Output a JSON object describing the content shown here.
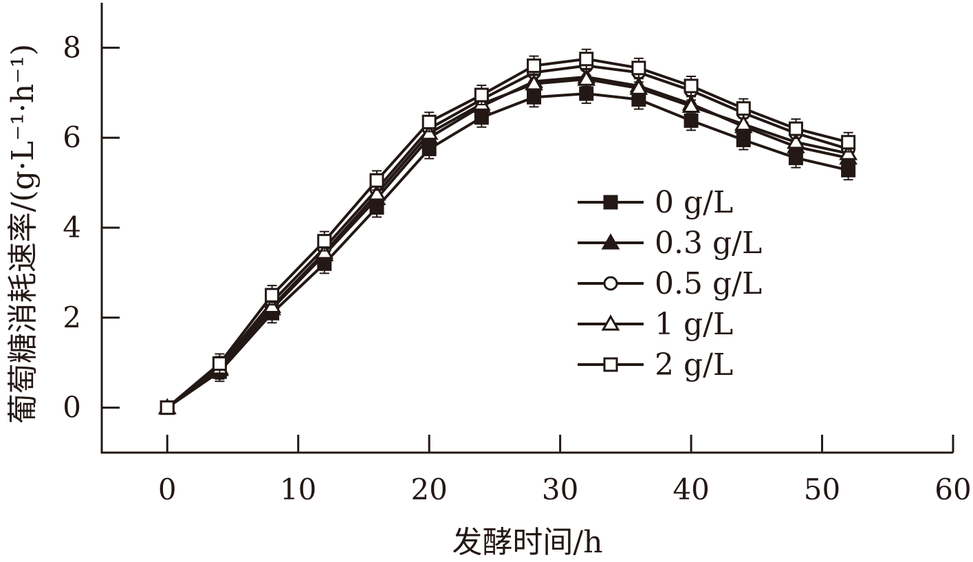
{
  "chart_data": {
    "type": "line",
    "xlabel": "发酵时间/h",
    "ylabel": "葡萄糖消耗速率/(g·L⁻¹·h⁻¹)",
    "xlim": [
      -5,
      60
    ],
    "ylim": [
      -1,
      9
    ],
    "x_ticks": [
      0,
      10,
      20,
      30,
      40,
      50,
      60
    ],
    "y_ticks": [
      0,
      2,
      4,
      6,
      8
    ],
    "grid": false,
    "legend_position": "center-right",
    "x": [
      0,
      4,
      8,
      12,
      16,
      20,
      24,
      28,
      32,
      36,
      40,
      44,
      48,
      52
    ],
    "series": [
      {
        "name": "0 g/L",
        "marker": "filled-square",
        "values": [
          0,
          0.8,
          2.1,
          3.2,
          4.45,
          5.75,
          6.45,
          6.9,
          6.98,
          6.85,
          6.38,
          5.95,
          5.55,
          5.28
        ]
      },
      {
        "name": "0.3 g/L",
        "marker": "filled-triangle",
        "values": [
          0,
          0.85,
          2.2,
          3.4,
          4.65,
          6.0,
          6.7,
          7.25,
          7.35,
          7.15,
          6.75,
          6.25,
          5.8,
          5.55
        ]
      },
      {
        "name": "0.5 g/L",
        "marker": "open-circle",
        "values": [
          0,
          0.92,
          2.35,
          3.55,
          4.85,
          6.2,
          6.85,
          7.45,
          7.6,
          7.45,
          7.05,
          6.55,
          6.1,
          5.75
        ]
      },
      {
        "name": "1 g/L",
        "marker": "open-triangle",
        "values": [
          0,
          0.88,
          2.25,
          3.45,
          4.75,
          6.1,
          6.75,
          7.2,
          7.3,
          7.1,
          6.7,
          6.3,
          5.9,
          5.65
        ]
      },
      {
        "name": "2 g/L",
        "marker": "open-square",
        "values": [
          0,
          0.98,
          2.5,
          3.7,
          5.05,
          6.35,
          6.95,
          7.6,
          7.75,
          7.55,
          7.15,
          6.65,
          6.2,
          5.9
        ]
      }
    ]
  },
  "colors": {
    "ink": "#231815",
    "background": "#ffffff"
  }
}
